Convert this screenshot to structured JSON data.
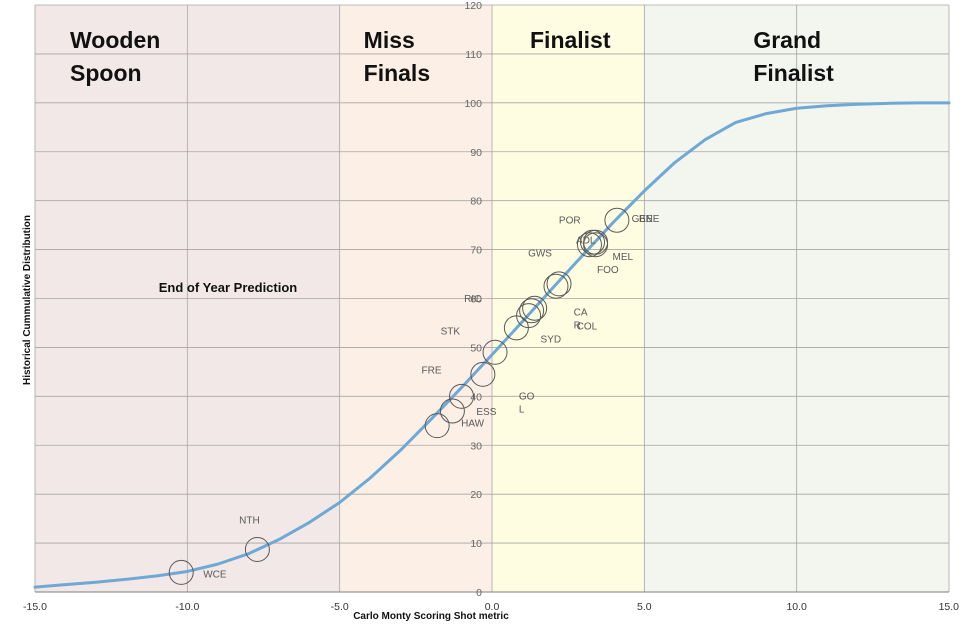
{
  "chart_data": {
    "type": "line",
    "xlabel": "Carlo Monty Scoring Shot metric",
    "ylabel": "Historical Cummulative Distribution",
    "xlim": [
      -15,
      15
    ],
    "ylim": [
      0,
      120
    ],
    "x_ticks": [
      "-15.0",
      "-10.0",
      "-5.0",
      "0.0",
      "5.0",
      "10.0",
      "15.0"
    ],
    "y_ticks": [
      "0",
      "10",
      "20",
      "30",
      "40",
      "50",
      "60",
      "70",
      "80",
      "90",
      "100",
      "110",
      "120"
    ],
    "grid": true,
    "annotation": "End of Year Prediction",
    "zones": [
      {
        "line1": "Wooden",
        "line2": "Spoon",
        "from": -15,
        "to": -5,
        "color": "#f3e8e8"
      },
      {
        "line1": "Miss",
        "line2": "Finals",
        "from": -5,
        "to": 0,
        "color": "#fcefe6"
      },
      {
        "line1": "Finalist",
        "line2": "",
        "from": 0,
        "to": 5,
        "color": "#fefde2"
      },
      {
        "line1": "Grand",
        "line2": "Finalist",
        "from": 5,
        "to": 15,
        "color": "#f2f6ee"
      }
    ],
    "series": [
      {
        "x": [
          -15,
          -14,
          -13,
          -12,
          -11,
          -10,
          -9,
          -8,
          -7,
          -6,
          -5,
          -4,
          -3,
          -2,
          -1,
          0,
          1,
          2,
          3,
          4,
          5,
          6,
          7,
          8,
          9,
          10,
          11,
          12,
          13,
          14,
          15
        ],
        "values": [
          1,
          1.5,
          2,
          2.6,
          3.3,
          4.2,
          5.7,
          7.8,
          10.7,
          14.2,
          18.3,
          23.3,
          29.0,
          35.3,
          41.8,
          48.5,
          55.3,
          62.2,
          69.0,
          75.7,
          82.0,
          87.8,
          92.5,
          96.0,
          97.8,
          98.9,
          99.4,
          99.7,
          99.9,
          100,
          100
        ],
        "color": "#6fa8d4"
      }
    ],
    "teams": [
      {
        "label": "WCE",
        "x": -10.2,
        "y": 4
      },
      {
        "label": "NTH",
        "x": -7.7,
        "y": 8.7
      },
      {
        "label": "HAW",
        "x": -1.8,
        "y": 34
      },
      {
        "label": "ESS",
        "x": -1.3,
        "y": 37
      },
      {
        "label": "FRE",
        "x": -1.0,
        "y": 40
      },
      {
        "label": "GO\nL",
        "x": -0.3,
        "y": 44.5
      },
      {
        "label": "STK",
        "x": 0.1,
        "y": 49
      },
      {
        "label": "RIC",
        "x": 0.8,
        "y": 54
      },
      {
        "label": "SYD",
        "x": 1.2,
        "y": 56.5
      },
      {
        "label": "COL",
        "x": 1.4,
        "y": 58
      },
      {
        "label": "CA\nR",
        "x": 1.3,
        "y": 57.5
      },
      {
        "label": "GWS",
        "x": 2.1,
        "y": 62.5
      },
      {
        "label": "FOO",
        "x": 2.2,
        "y": 63
      },
      {
        "label": "ADL",
        "x": 3.2,
        "y": 71
      },
      {
        "label": "POR",
        "x": 3.4,
        "y": 71
      },
      {
        "label": "MEL",
        "x": 3.3,
        "y": 71.5
      },
      {
        "label": "GEE",
        "x": 3.4,
        "y": 71.5
      },
      {
        "label": "BNE",
        "x": 4.1,
        "y": 76
      }
    ]
  }
}
